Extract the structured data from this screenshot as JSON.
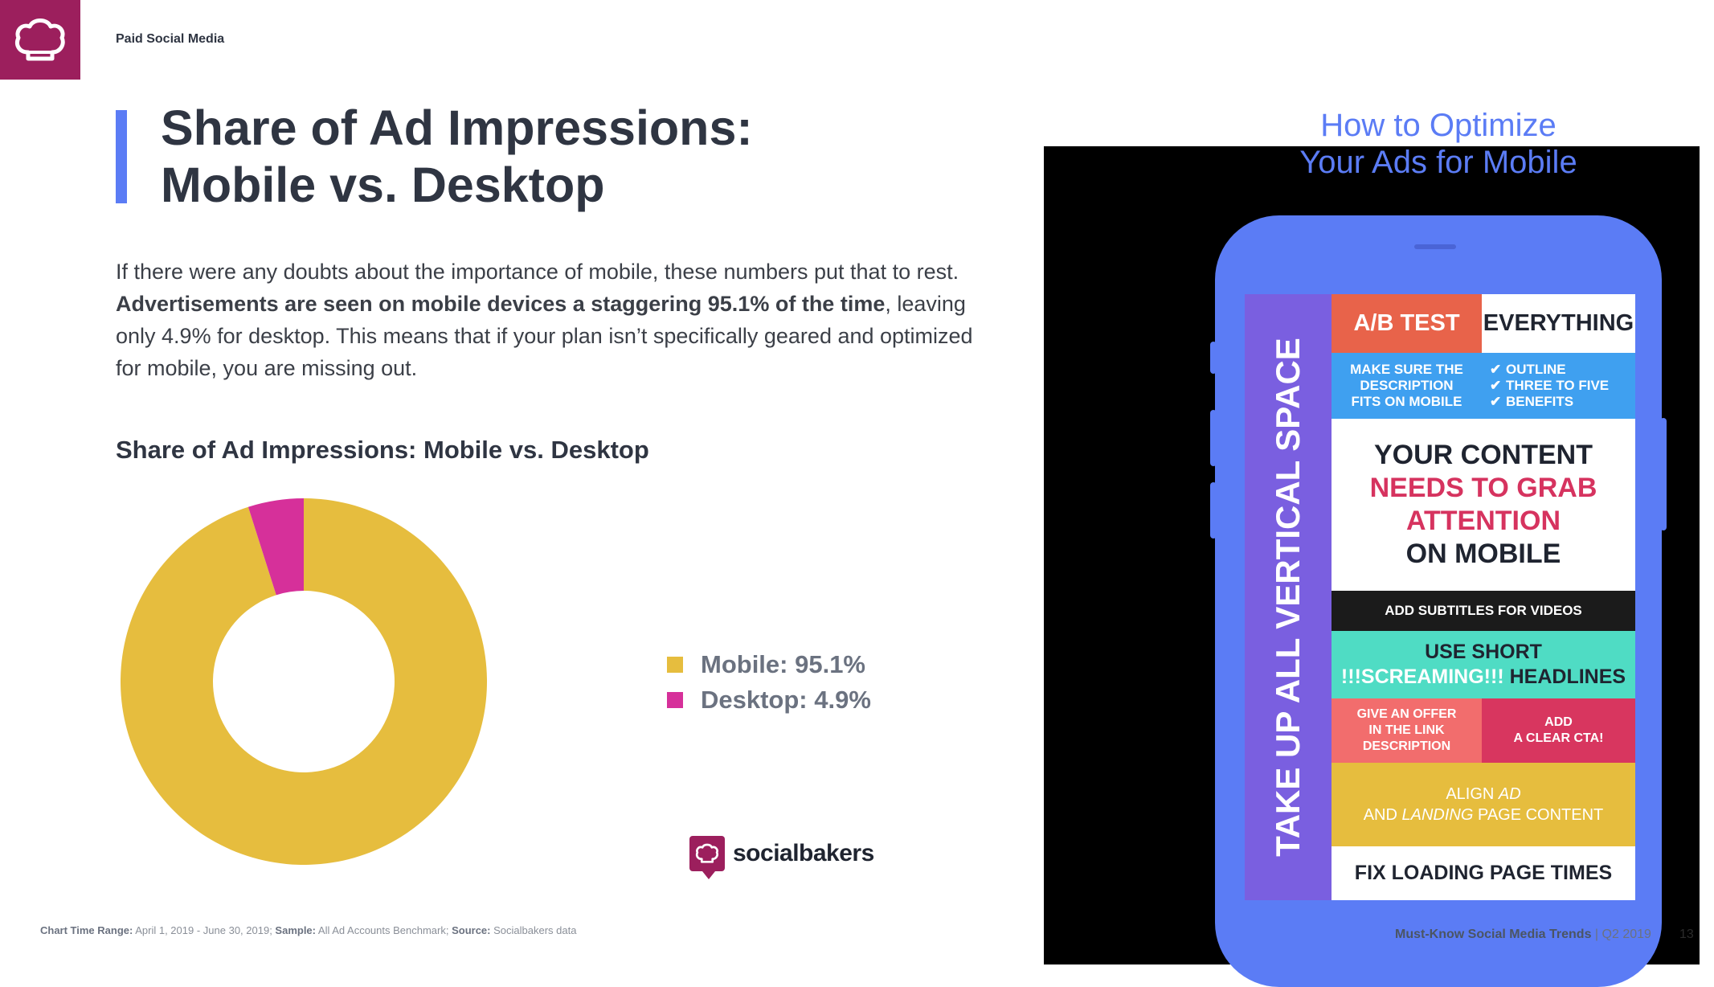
{
  "header": {
    "section_label": "Paid Social Media",
    "logo_icon": "chef-hat-icon"
  },
  "title": {
    "line1": "Share of Ad Impressions:",
    "line2": "Mobile vs. Desktop"
  },
  "body": {
    "part1": "If there were any doubts about the importance of mobile, these numbers put that to rest. ",
    "bold": "Advertisements are seen on mobile devices a staggering 95.1% of the time",
    "part2": ", leaving only 4.9% for desktop. This means that if your plan isn’t specifically geared and optimized for mobile, you are missing out."
  },
  "chart_title": "Share of Ad Impressions: Mobile vs. Desktop",
  "chart_data": {
    "type": "pie",
    "title": "Share of Ad Impressions: Mobile vs. Desktop",
    "donut": true,
    "categories": [
      "Mobile",
      "Desktop"
    ],
    "values": [
      95.1,
      4.9
    ],
    "unit": "%",
    "colors": [
      "#e6bd3e",
      "#d6309a"
    ],
    "legend_labels": [
      "Mobile: 95.1%",
      "Desktop: 4.9%"
    ],
    "legend_position": "right"
  },
  "brand": {
    "name": "socialbakers"
  },
  "footnote": {
    "range_label": "Chart Time Range:",
    "range_value": " April 1, 2019 - June 30, 2019; ",
    "sample_label": "Sample:",
    "sample_value": " All Ad Accounts Benchmark; ",
    "source_label": "Source:",
    "source_value": " Socialbakers data"
  },
  "infographic": {
    "title_line1": "How to Optimize",
    "title_line2": "Your Ads for Mobile",
    "vertical_text": "TAKE UP ALL VERTICAL SPACE",
    "ab_test": "A/B TEST",
    "everything": "EVERYTHING",
    "description": [
      "MAKE SURE THE",
      "DESCRIPTION",
      "FITS ON MOBILE"
    ],
    "outline": [
      "OUTLINE",
      "THREE TO FIVE",
      "BENEFITS"
    ],
    "content": [
      "YOUR CONTENT",
      "NEEDS TO GRAB",
      "ATTENTION",
      "ON MOBILE"
    ],
    "subtitles": "ADD SUBTITLES FOR VIDEOS",
    "short_line1": "USE SHORT",
    "short_line2a": "!!!SCREAMING!!!",
    "short_line2b": " HEADLINES",
    "offer": [
      "GIVE AN OFFER",
      "IN THE LINK",
      "DESCRIPTION"
    ],
    "cta": [
      "ADD",
      "A CLEAR CTA!"
    ],
    "align_line1a": "ALIGN ",
    "align_line1b": "AD",
    "align_line2a": "AND ",
    "align_line2b": "LANDING",
    "align_line2c": " PAGE CONTENT",
    "fix": "FIX LOADING PAGE TIMES",
    "colors": {
      "phone": "#5b7cf5",
      "strip": "#7a5fe0",
      "orange": "#e8634a",
      "sky": "#3fa0f0",
      "pink": "#d6335f",
      "teal": "#4fdcc4",
      "salmon": "#f26d6d",
      "crimson": "#d8365f",
      "gold": "#e6bd3e"
    }
  },
  "footer": {
    "report": "Must-Know Social Media Trends",
    "period": " | Q2 2019",
    "page": "13"
  }
}
